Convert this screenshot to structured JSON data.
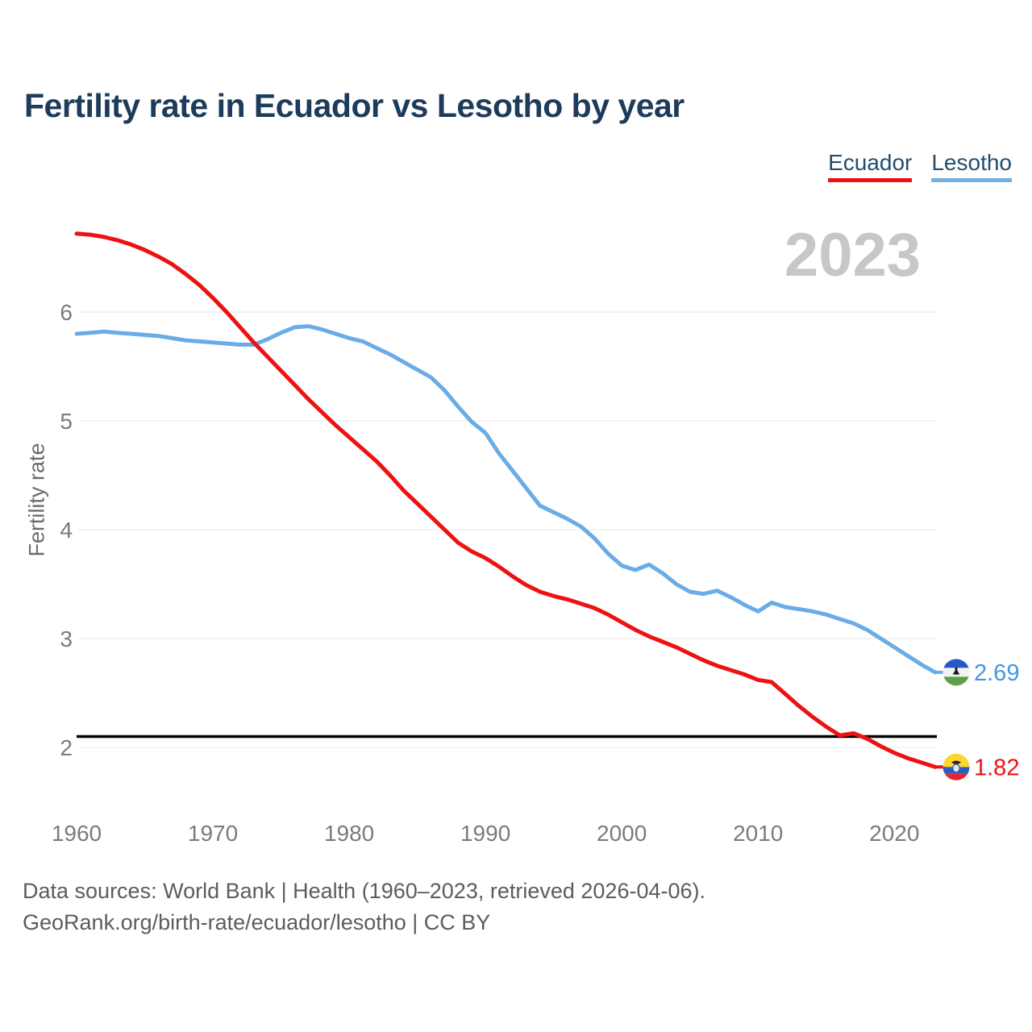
{
  "title": "Fertility rate in Ecuador vs Lesotho by year",
  "watermark": "2023",
  "legend": [
    {
      "label": "Ecuador",
      "color": "#ee1111"
    },
    {
      "label": "Lesotho",
      "color": "#74b0e0"
    }
  ],
  "y_axis": {
    "label": "Fertility rate",
    "ticks": [
      6,
      5,
      4,
      3,
      2
    ]
  },
  "x_axis": {
    "ticks": [
      1960,
      1970,
      1980,
      1990,
      2000,
      2010,
      2020
    ]
  },
  "reference_line": {
    "value": 2.1,
    "color": "#000000"
  },
  "end_labels": [
    {
      "series": "Lesotho",
      "value": "2.69"
    },
    {
      "series": "Ecuador",
      "value": "1.82"
    }
  ],
  "footer": {
    "line1": "Data sources: World Bank | Health (1960–2023, retrieved 2026-04-06).",
    "line2": "GeoRank.org/birth-rate/ecuador/lesotho | CC BY"
  },
  "chart_data": {
    "type": "line",
    "title": "Fertility rate in Ecuador vs Lesotho by year",
    "xlabel": "",
    "ylabel": "Fertility rate",
    "x": [
      1960,
      1961,
      1962,
      1963,
      1964,
      1965,
      1966,
      1967,
      1968,
      1969,
      1970,
      1971,
      1972,
      1973,
      1974,
      1975,
      1976,
      1977,
      1978,
      1979,
      1980,
      1981,
      1982,
      1983,
      1984,
      1985,
      1986,
      1987,
      1988,
      1989,
      1990,
      1991,
      1992,
      1993,
      1994,
      1995,
      1996,
      1997,
      1998,
      1999,
      2000,
      2001,
      2002,
      2003,
      2004,
      2005,
      2006,
      2007,
      2008,
      2009,
      2010,
      2011,
      2012,
      2013,
      2014,
      2015,
      2016,
      2017,
      2018,
      2019,
      2020,
      2021,
      2022,
      2023
    ],
    "series": [
      {
        "name": "Ecuador",
        "color": "#ee1111",
        "values": [
          6.72,
          6.71,
          6.69,
          6.66,
          6.62,
          6.57,
          6.51,
          6.44,
          6.35,
          6.25,
          6.13,
          6.0,
          5.86,
          5.72,
          5.59,
          5.46,
          5.33,
          5.2,
          5.08,
          4.96,
          4.85,
          4.74,
          4.63,
          4.5,
          4.36,
          4.24,
          4.12,
          4.0,
          3.88,
          3.8,
          3.74,
          3.66,
          3.57,
          3.49,
          3.43,
          3.39,
          3.36,
          3.32,
          3.28,
          3.22,
          3.15,
          3.08,
          3.02,
          2.97,
          2.92,
          2.86,
          2.8,
          2.75,
          2.71,
          2.67,
          2.62,
          2.6,
          2.49,
          2.38,
          2.28,
          2.19,
          2.11,
          2.13,
          2.08,
          2.01,
          1.95,
          1.9,
          1.86,
          1.82
        ]
      },
      {
        "name": "Lesotho",
        "color": "#6aace6",
        "values": [
          5.8,
          5.81,
          5.82,
          5.81,
          5.8,
          5.79,
          5.78,
          5.76,
          5.74,
          5.73,
          5.72,
          5.71,
          5.7,
          5.7,
          5.75,
          5.81,
          5.86,
          5.87,
          5.84,
          5.8,
          5.76,
          5.73,
          5.67,
          5.61,
          5.54,
          5.47,
          5.4,
          5.28,
          5.13,
          4.99,
          4.89,
          4.7,
          4.54,
          4.38,
          4.22,
          4.16,
          4.1,
          4.03,
          3.92,
          3.78,
          3.67,
          3.63,
          3.68,
          3.6,
          3.5,
          3.43,
          3.41,
          3.44,
          3.38,
          3.31,
          3.25,
          3.33,
          3.29,
          3.27,
          3.25,
          3.22,
          3.18,
          3.14,
          3.08,
          3.0,
          2.92,
          2.84,
          2.76,
          2.69
        ]
      }
    ],
    "y_ticks": [
      2,
      3,
      4,
      5,
      6
    ],
    "x_ticks": [
      1960,
      1970,
      1980,
      1990,
      2000,
      2010,
      2020
    ],
    "ylim": [
      1.6,
      6.9
    ],
    "reference_line": 2.1,
    "grid": true,
    "legend_position": "top-right"
  }
}
